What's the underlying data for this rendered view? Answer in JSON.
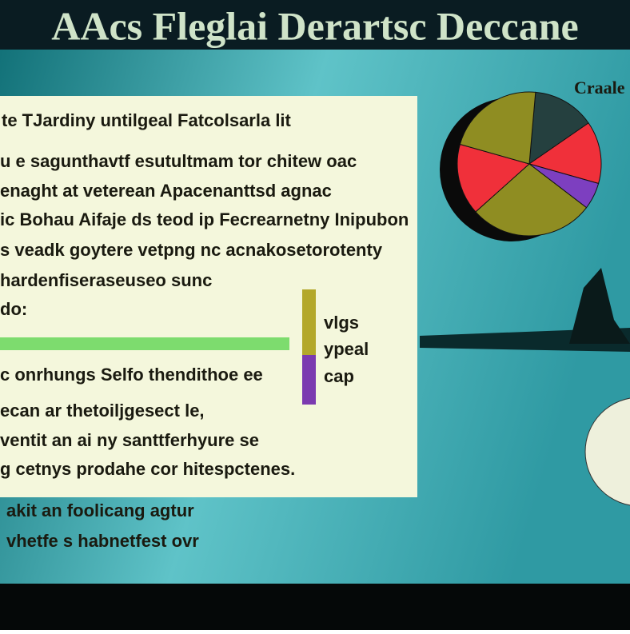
{
  "header": {
    "title": "AAcs Fleglai Derartsc Deccane"
  },
  "panel": {
    "heading": "te TJardiny untilgeal Fatcolsarla lit",
    "lines_top": [
      "u e sagunthavtf esutultmam tor chitew oac",
      "enaght at veterean Apacenanttsd agnac",
      "ic Bohau Aifaje ds teod ip Fecrearnetny Inipubon",
      "s veadk goytere vetpng nc acnakosetorotenty",
      "hardenfiseraseuseo sunc",
      "do:"
    ],
    "lines_bottom": [
      "c onrhungs Selfo thendithoe ee",
      "ecan ar thetoiljgesect le,",
      "ventit an ai ny santtferhyure se",
      "g cetnys prodahe cor hitespctenes."
    ]
  },
  "footer_lines": [
    "akit an foolicang agtur",
    "vhetfe s habnetfest ovr"
  ],
  "side_key": [
    {
      "label": "vlgs",
      "color": "#b3a82a"
    },
    {
      "label": "ypeal",
      "color": "#b3a82a"
    },
    {
      "label": "cap",
      "color": "#7b3ab0"
    }
  ],
  "chart_data": {
    "type": "pie",
    "title": "Craale",
    "values": [
      14,
      14,
      6,
      28,
      16,
      22
    ],
    "colors": [
      "#25403f",
      "#f0303a",
      "#7d3fc0",
      "#8f8d22",
      "#f0303a",
      "#8f8d22"
    ]
  }
}
